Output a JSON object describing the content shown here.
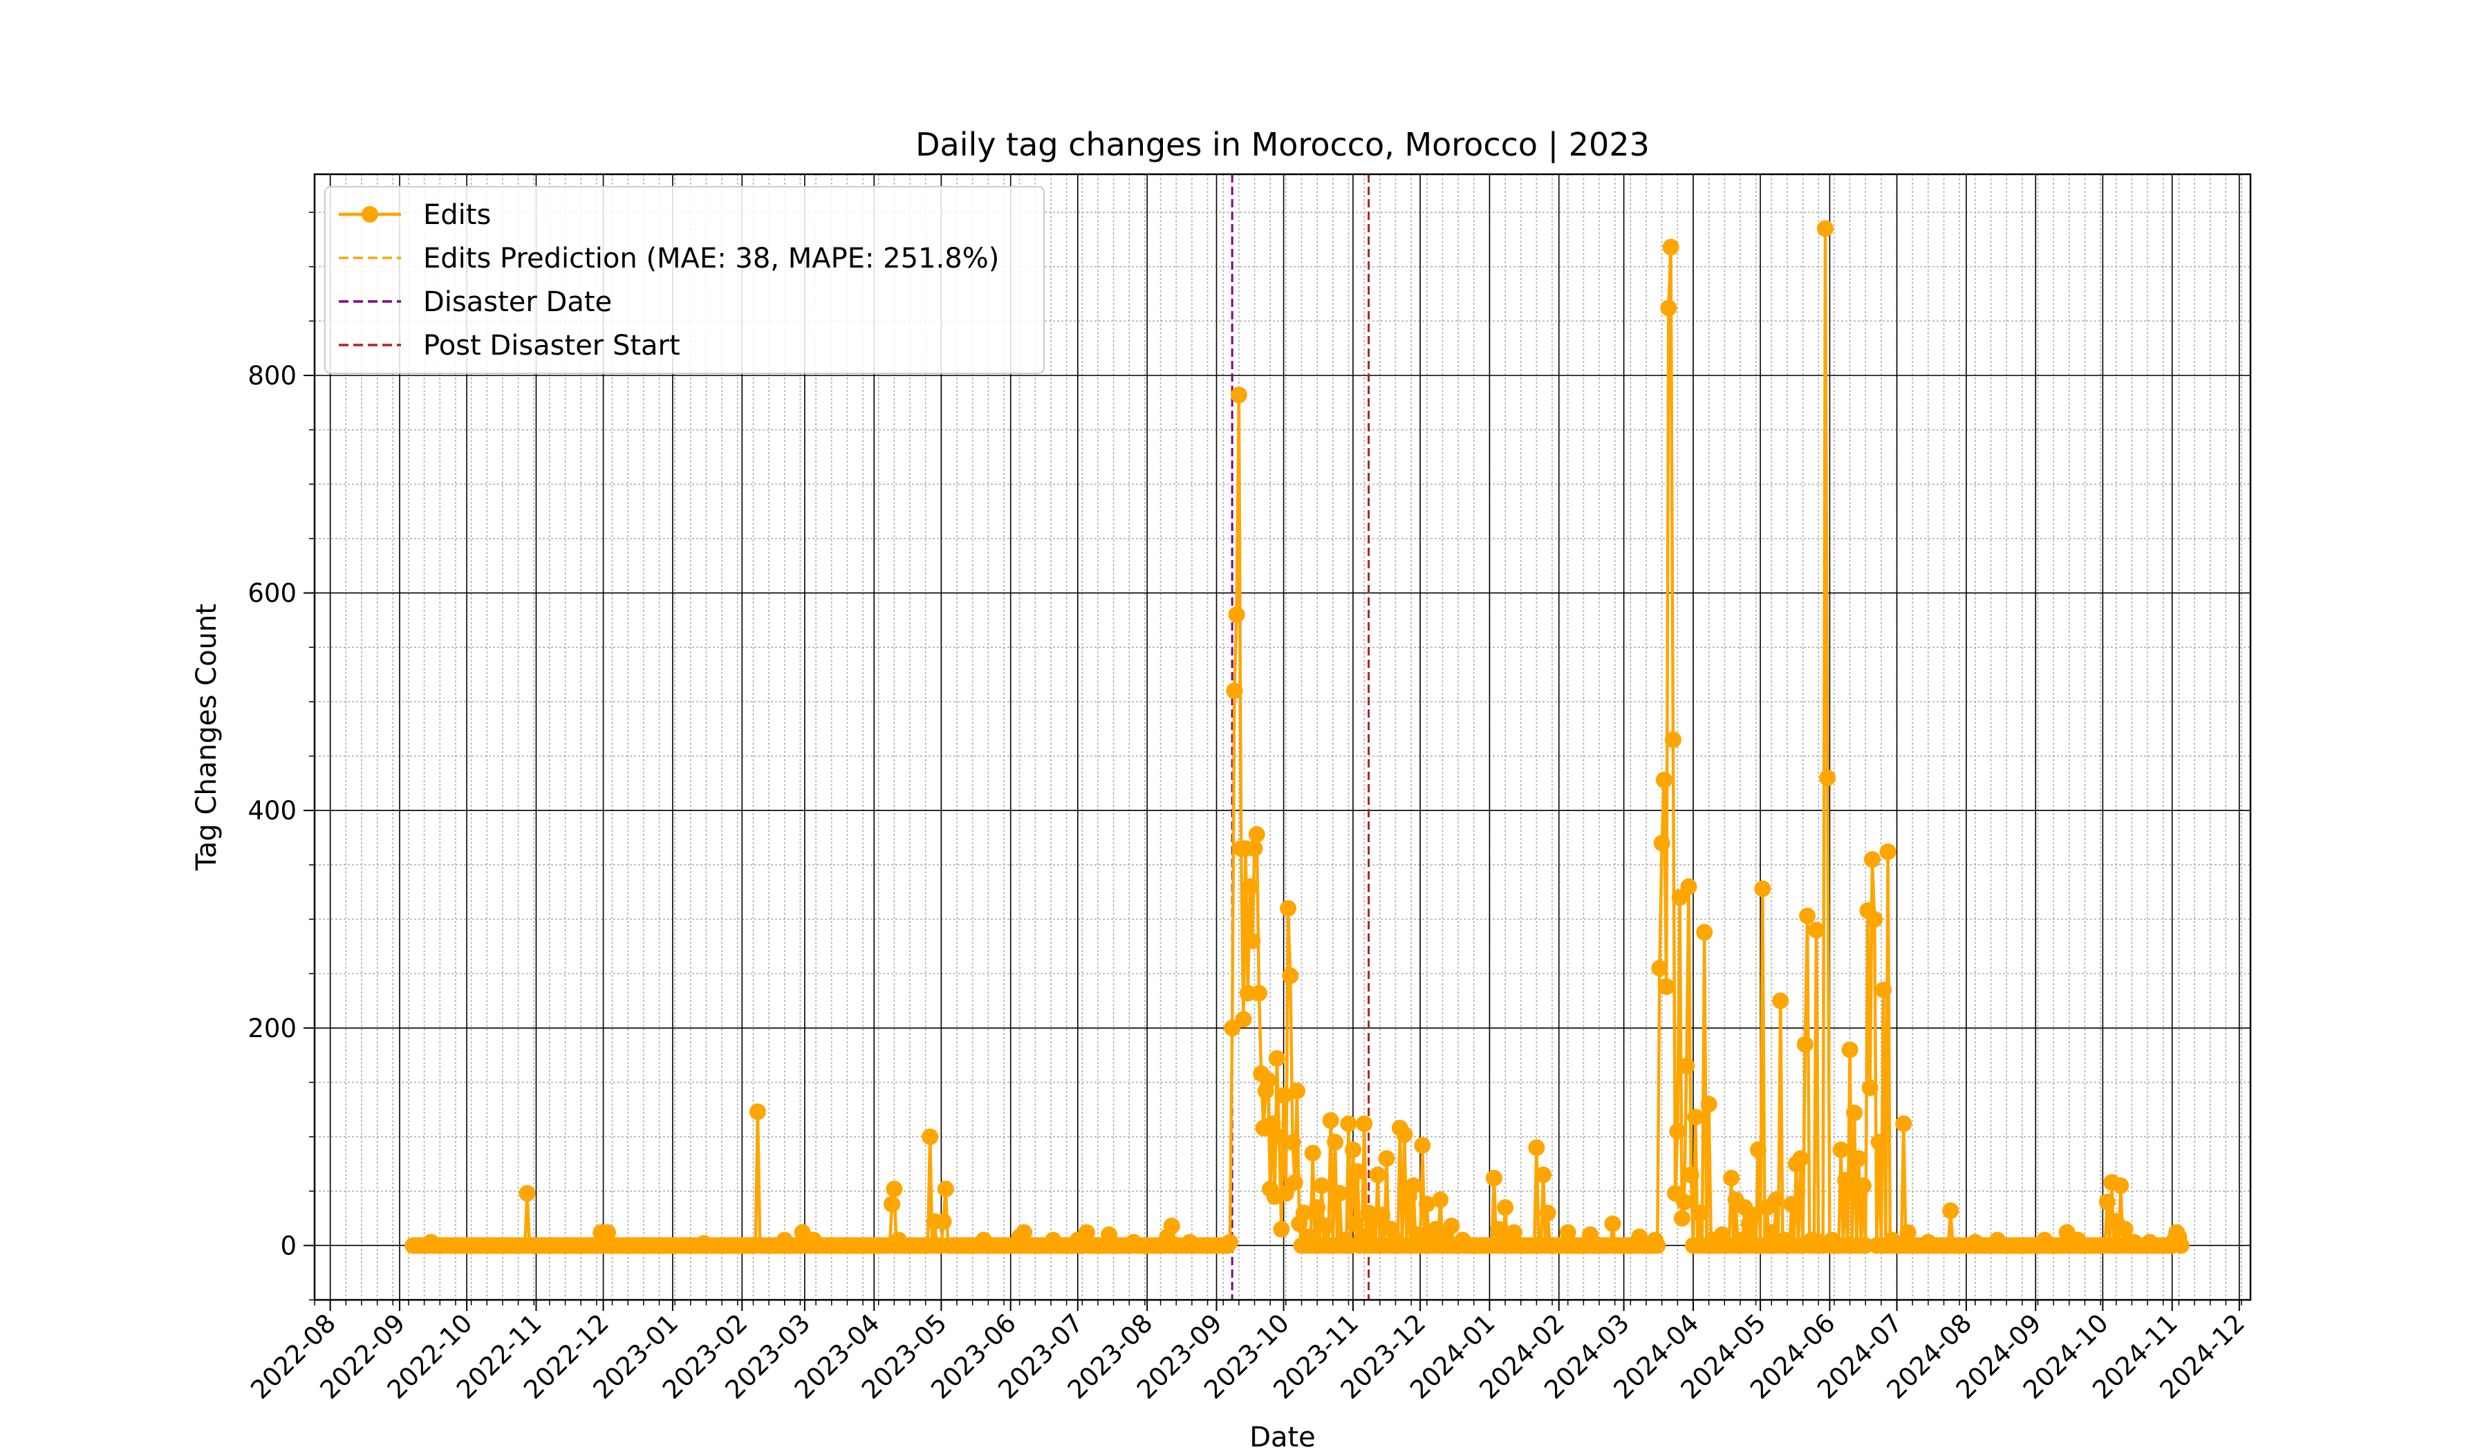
{
  "chart_data": {
    "type": "line",
    "title": "Daily tag changes in Morocco, Morocco | 2023",
    "xlabel": "Date",
    "ylabel": "Tag Changes Count",
    "xlim": [
      "2022-07-25",
      "2024-12-06"
    ],
    "ylim": [
      -50,
      985
    ],
    "y_ticks": [
      0,
      200,
      400,
      600,
      800
    ],
    "x_ticks": [
      "2022-08",
      "2022-09",
      "2022-10",
      "2022-11",
      "2022-12",
      "2023-01",
      "2023-02",
      "2023-03",
      "2023-04",
      "2023-05",
      "2023-06",
      "2023-07",
      "2023-08",
      "2023-09",
      "2023-10",
      "2023-11",
      "2023-12",
      "2024-01",
      "2024-02",
      "2024-03",
      "2024-04",
      "2024-05",
      "2024-06",
      "2024-07",
      "2024-08",
      "2024-09",
      "2024-10",
      "2024-11",
      "2024-12"
    ],
    "grid": {
      "major": true,
      "minor": true
    },
    "legend_position": "top-left",
    "colors": {
      "edits": "#FFA500",
      "prediction": "#FFA500",
      "disaster": "#800080",
      "post": "#B22222"
    },
    "legend": [
      {
        "key": "edits",
        "label": "Edits",
        "style": "line-marker"
      },
      {
        "key": "prediction",
        "label": "Edits Prediction (MAE: 38, MAPE: 251.8%)",
        "style": "dashed"
      },
      {
        "key": "disaster",
        "label": "Disaster Date",
        "style": "dashed"
      },
      {
        "key": "post",
        "label": "Post Disaster Start",
        "style": "dashed"
      }
    ],
    "vlines": [
      {
        "key": "disaster",
        "date": "2023-09-08"
      },
      {
        "key": "post",
        "date": "2023-11-08"
      }
    ],
    "series": [
      {
        "name": "Edits",
        "baseline_range": [
          "2022-09-07",
          "2024-11-05"
        ],
        "points": [
          [
            "2022-09-15",
            3
          ],
          [
            "2022-10-28",
            48
          ],
          [
            "2022-11-30",
            12
          ],
          [
            "2022-12-03",
            12
          ],
          [
            "2023-01-15",
            2
          ],
          [
            "2023-02-08",
            123
          ],
          [
            "2023-02-20",
            5
          ],
          [
            "2023-02-28",
            12
          ],
          [
            "2023-03-05",
            5
          ],
          [
            "2023-04-09",
            38
          ],
          [
            "2023-04-10",
            52
          ],
          [
            "2023-04-12",
            5
          ],
          [
            "2023-04-26",
            100
          ],
          [
            "2023-04-28",
            22
          ],
          [
            "2023-05-02",
            22
          ],
          [
            "2023-05-03",
            52
          ],
          [
            "2023-05-20",
            5
          ],
          [
            "2023-06-05",
            8
          ],
          [
            "2023-06-07",
            12
          ],
          [
            "2023-06-20",
            5
          ],
          [
            "2023-07-01",
            5
          ],
          [
            "2023-07-05",
            12
          ],
          [
            "2023-07-15",
            10
          ],
          [
            "2023-07-26",
            3
          ],
          [
            "2023-08-10",
            8
          ],
          [
            "2023-08-12",
            18
          ],
          [
            "2023-08-20",
            3
          ],
          [
            "2023-09-07",
            3
          ],
          [
            "2023-09-08",
            200
          ],
          [
            "2023-09-09",
            510
          ],
          [
            "2023-09-10",
            580
          ],
          [
            "2023-09-11",
            782
          ],
          [
            "2023-09-12",
            365
          ],
          [
            "2023-09-13",
            208
          ],
          [
            "2023-09-14",
            365
          ],
          [
            "2023-09-15",
            232
          ],
          [
            "2023-09-16",
            330
          ],
          [
            "2023-09-17",
            280
          ],
          [
            "2023-09-18",
            365
          ],
          [
            "2023-09-19",
            378
          ],
          [
            "2023-09-20",
            232
          ],
          [
            "2023-09-21",
            158
          ],
          [
            "2023-09-22",
            108
          ],
          [
            "2023-09-23",
            142
          ],
          [
            "2023-09-24",
            152
          ],
          [
            "2023-09-25",
            52
          ],
          [
            "2023-09-26",
            112
          ],
          [
            "2023-09-27",
            45
          ],
          [
            "2023-09-28",
            172
          ],
          [
            "2023-09-29",
            100
          ],
          [
            "2023-09-30",
            15
          ],
          [
            "2023-10-01",
            138
          ],
          [
            "2023-10-02",
            48
          ],
          [
            "2023-10-03",
            310
          ],
          [
            "2023-10-04",
            248
          ],
          [
            "2023-10-05",
            95
          ],
          [
            "2023-10-06",
            58
          ],
          [
            "2023-10-07",
            142
          ],
          [
            "2023-10-08",
            20
          ],
          [
            "2023-10-09",
            0
          ],
          [
            "2023-10-10",
            30
          ],
          [
            "2023-10-12",
            8
          ],
          [
            "2023-10-14",
            85
          ],
          [
            "2023-10-16",
            35
          ],
          [
            "2023-10-18",
            55
          ],
          [
            "2023-10-20",
            18
          ],
          [
            "2023-10-22",
            115
          ],
          [
            "2023-10-24",
            95
          ],
          [
            "2023-10-26",
            48
          ],
          [
            "2023-10-28",
            5
          ],
          [
            "2023-10-30",
            112
          ],
          [
            "2023-11-01",
            88
          ],
          [
            "2023-11-02",
            20
          ],
          [
            "2023-11-03",
            68
          ],
          [
            "2023-11-05",
            8
          ],
          [
            "2023-11-06",
            112
          ],
          [
            "2023-11-08",
            30
          ],
          [
            "2023-11-10",
            25
          ],
          [
            "2023-11-12",
            65
          ],
          [
            "2023-11-14",
            28
          ],
          [
            "2023-11-16",
            80
          ],
          [
            "2023-11-18",
            15
          ],
          [
            "2023-11-20",
            5
          ],
          [
            "2023-11-22",
            108
          ],
          [
            "2023-11-24",
            102
          ],
          [
            "2023-11-26",
            45
          ],
          [
            "2023-11-28",
            55
          ],
          [
            "2023-11-30",
            10
          ],
          [
            "2023-12-02",
            92
          ],
          [
            "2023-12-04",
            38
          ],
          [
            "2023-12-06",
            5
          ],
          [
            "2023-12-08",
            15
          ],
          [
            "2023-12-10",
            42
          ],
          [
            "2023-12-12",
            8
          ],
          [
            "2023-12-15",
            18
          ],
          [
            "2023-12-20",
            5
          ],
          [
            "2024-01-03",
            62
          ],
          [
            "2024-01-05",
            15
          ],
          [
            "2024-01-08",
            35
          ],
          [
            "2024-01-12",
            12
          ],
          [
            "2024-01-22",
            90
          ],
          [
            "2024-01-25",
            65
          ],
          [
            "2024-01-27",
            30
          ],
          [
            "2024-02-05",
            12
          ],
          [
            "2024-02-15",
            10
          ],
          [
            "2024-02-25",
            20
          ],
          [
            "2024-03-08",
            8
          ],
          [
            "2024-03-15",
            5
          ],
          [
            "2024-03-17",
            255
          ],
          [
            "2024-03-18",
            370
          ],
          [
            "2024-03-19",
            428
          ],
          [
            "2024-03-20",
            238
          ],
          [
            "2024-03-21",
            862
          ],
          [
            "2024-03-22",
            918
          ],
          [
            "2024-03-23",
            465
          ],
          [
            "2024-03-24",
            48
          ],
          [
            "2024-03-25",
            105
          ],
          [
            "2024-03-26",
            320
          ],
          [
            "2024-03-27",
            25
          ],
          [
            "2024-03-28",
            40
          ],
          [
            "2024-03-29",
            165
          ],
          [
            "2024-03-30",
            330
          ],
          [
            "2024-03-31",
            65
          ],
          [
            "2024-04-02",
            118
          ],
          [
            "2024-04-04",
            30
          ],
          [
            "2024-04-06",
            288
          ],
          [
            "2024-04-08",
            130
          ],
          [
            "2024-04-10",
            5
          ],
          [
            "2024-04-14",
            10
          ],
          [
            "2024-04-18",
            62
          ],
          [
            "2024-04-20",
            42
          ],
          [
            "2024-04-22",
            5
          ],
          [
            "2024-04-24",
            35
          ],
          [
            "2024-04-26",
            20
          ],
          [
            "2024-04-28",
            28
          ],
          [
            "2024-04-30",
            88
          ],
          [
            "2024-05-02",
            328
          ],
          [
            "2024-05-04",
            35
          ],
          [
            "2024-05-06",
            12
          ],
          [
            "2024-05-08",
            42
          ],
          [
            "2024-05-10",
            225
          ],
          [
            "2024-05-12",
            5
          ],
          [
            "2024-05-15",
            38
          ],
          [
            "2024-05-17",
            75
          ],
          [
            "2024-05-19",
            80
          ],
          [
            "2024-05-21",
            185
          ],
          [
            "2024-05-22",
            303
          ],
          [
            "2024-05-24",
            5
          ],
          [
            "2024-05-26",
            290
          ],
          [
            "2024-05-28",
            3
          ],
          [
            "2024-05-30",
            935
          ],
          [
            "2024-05-31",
            430
          ],
          [
            "2024-06-02",
            5
          ],
          [
            "2024-06-06",
            88
          ],
          [
            "2024-06-08",
            60
          ],
          [
            "2024-06-10",
            180
          ],
          [
            "2024-06-12",
            122
          ],
          [
            "2024-06-14",
            80
          ],
          [
            "2024-06-16",
            55
          ],
          [
            "2024-06-18",
            308
          ],
          [
            "2024-06-19",
            145
          ],
          [
            "2024-06-20",
            355
          ],
          [
            "2024-06-21",
            300
          ],
          [
            "2024-06-23",
            95
          ],
          [
            "2024-06-25",
            235
          ],
          [
            "2024-06-27",
            362
          ],
          [
            "2024-06-29",
            5
          ],
          [
            "2024-07-04",
            112
          ],
          [
            "2024-07-06",
            12
          ],
          [
            "2024-07-15",
            3
          ],
          [
            "2024-07-25",
            32
          ],
          [
            "2024-08-05",
            3
          ],
          [
            "2024-08-15",
            5
          ],
          [
            "2024-09-05",
            5
          ],
          [
            "2024-09-15",
            12
          ],
          [
            "2024-09-20",
            5
          ],
          [
            "2024-10-03",
            40
          ],
          [
            "2024-10-05",
            58
          ],
          [
            "2024-10-07",
            22
          ],
          [
            "2024-10-09",
            55
          ],
          [
            "2024-10-11",
            15
          ],
          [
            "2024-10-15",
            3
          ],
          [
            "2024-10-22",
            3
          ],
          [
            "2024-11-02",
            5
          ],
          [
            "2024-11-03",
            12
          ],
          [
            "2024-11-04",
            8
          ]
        ]
      }
    ]
  }
}
